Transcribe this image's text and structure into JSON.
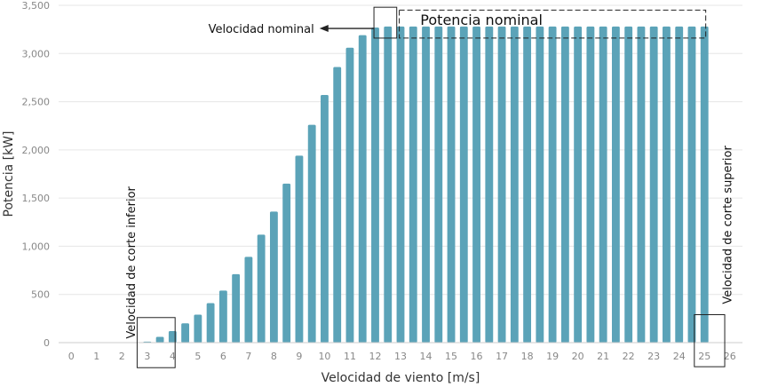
{
  "chart_data": {
    "type": "bar",
    "title": "",
    "xlabel": "Velocidad de viento [m/s]",
    "ylabel": "Potencia [kW]",
    "xlim": [
      -0.5,
      26.5
    ],
    "ylim": [
      0,
      3500
    ],
    "grid": "horizontal",
    "bar_color": "#5ba3b8",
    "x_ticks": [
      "0",
      "1",
      "2",
      "3",
      "4",
      "5",
      "6",
      "7",
      "8",
      "9",
      "10",
      "11",
      "12",
      "13",
      "14",
      "15",
      "16",
      "17",
      "18",
      "19",
      "20",
      "21",
      "22",
      "23",
      "24",
      "25",
      "26"
    ],
    "y_ticks": [
      "0",
      "500",
      "1,000",
      "1,500",
      "2,000",
      "2,500",
      "3,000",
      "3,500"
    ],
    "x": [
      3,
      3.5,
      4,
      4.5,
      5,
      5.5,
      6,
      6.5,
      7,
      7.5,
      8,
      8.5,
      9,
      9.5,
      10,
      10.5,
      11,
      11.5,
      12,
      12.5,
      13,
      13.5,
      14,
      14.5,
      15,
      15.5,
      16,
      16.5,
      17,
      17.5,
      18,
      18.5,
      19,
      19.5,
      20,
      20.5,
      21,
      21.5,
      22,
      22.5,
      23,
      23.5,
      24,
      24.5,
      25
    ],
    "values": [
      10,
      60,
      120,
      200,
      290,
      410,
      540,
      710,
      890,
      1120,
      1360,
      1650,
      1940,
      2260,
      2570,
      2860,
      3060,
      3190,
      3270,
      3280,
      3280,
      3280,
      3280,
      3280,
      3280,
      3280,
      3280,
      3280,
      3280,
      3280,
      3280,
      3280,
      3280,
      3280,
      3280,
      3280,
      3280,
      3280,
      3280,
      3280,
      3280,
      3280,
      3280,
      3280,
      3280
    ],
    "annotations": {
      "rated_speed": "Velocidad nominal",
      "rated_power": "Potencia nominal",
      "cut_in": "Velocidad de corte inferior",
      "cut_out": "Velocidad de corte superior"
    }
  }
}
